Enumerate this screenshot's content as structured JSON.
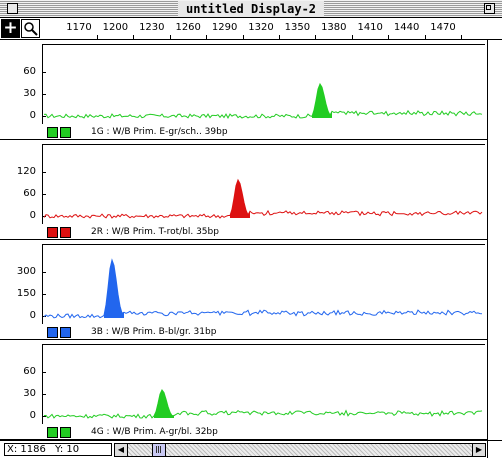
{
  "window": {
    "title": "untitled Display-2"
  },
  "toolbar": {
    "tools": [
      {
        "name": "crosshair",
        "glyph": "+"
      },
      {
        "name": "magnifier",
        "glyph": ""
      }
    ]
  },
  "ruler": {
    "labels": [
      "1170",
      "1200",
      "1230",
      "1260",
      "1290",
      "1320",
      "1350",
      "1380",
      "1410",
      "1440",
      "1470"
    ]
  },
  "panels": [
    {
      "id": "1G",
      "color": "#22cc22",
      "legend": "1G : W/B Prim. E-gr/sch.. 39bp",
      "yticks": [
        "60",
        "30",
        "0"
      ],
      "peak_at": "1360"
    },
    {
      "id": "2R",
      "color": "#dd1111",
      "legend": "2R : W/B Prim. T-rot/bl. 35bp",
      "yticks": [
        "120",
        "60",
        "0"
      ],
      "peak_at": "1300"
    },
    {
      "id": "3B",
      "color": "#2266ee",
      "legend": "3B : W/B Prim. B-bl/gr. 31bp",
      "yticks": [
        "300",
        "150",
        "0"
      ],
      "peak_at": "1200"
    },
    {
      "id": "4G",
      "color": "#22cc22",
      "legend": "4G : W/B Prim. A-gr/bl. 32bp",
      "yticks": [
        "60",
        "30",
        "0"
      ],
      "peak_at": "1230"
    }
  ],
  "status": {
    "x_label": "X: 1186",
    "y_label": "Y: 10"
  }
}
